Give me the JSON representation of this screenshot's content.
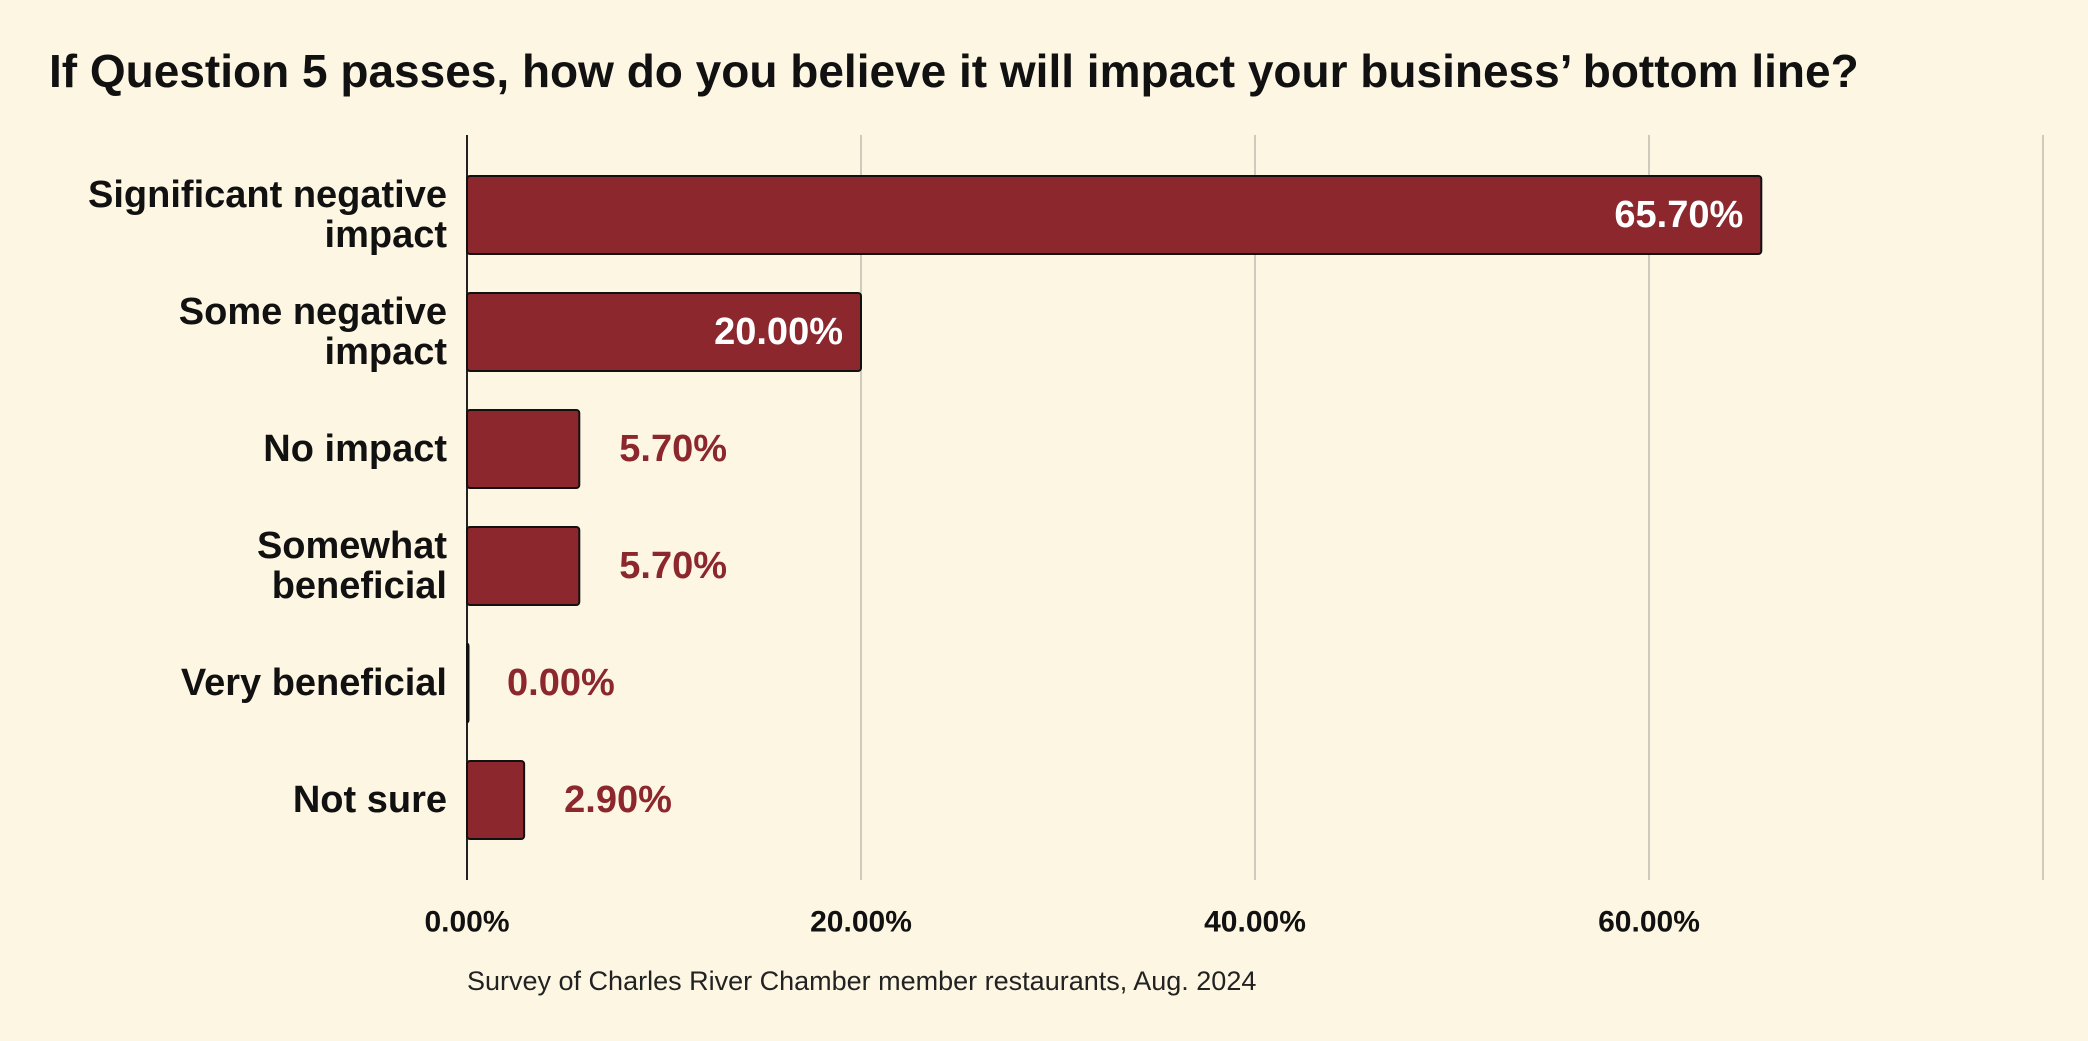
{
  "title": "If Question 5 passes, how do you believe it will impact your business’ bottom line?",
  "source_note": "Survey of Charles River Chamber member restaurants, Aug. 2024",
  "colors": {
    "background": "#fdf6e3",
    "bar": "#8b272d",
    "label_inside": "#ffffff",
    "label_outside": "#8b272d",
    "gridline": "#cfcabe"
  },
  "chart_data": {
    "type": "bar",
    "orientation": "horizontal",
    "title": "If Question 5 passes, how do you believe it will impact your business’ bottom line?",
    "categories": [
      [
        "Significant negative",
        "impact"
      ],
      [
        "Some negative",
        "impact"
      ],
      [
        "No impact"
      ],
      [
        "Somewhat",
        "beneficial"
      ],
      [
        "Very beneficial"
      ],
      [
        "Not sure"
      ]
    ],
    "values": [
      65.7,
      20.0,
      5.7,
      5.7,
      0.0,
      2.9
    ],
    "value_labels": [
      "65.70%",
      "20.00%",
      "5.70%",
      "5.70%",
      "0.00%",
      "2.90%"
    ],
    "xlim": [
      0,
      80
    ],
    "xticks": [
      0,
      20,
      40,
      60
    ],
    "xtick_labels": [
      "0.00%",
      "20.00%",
      "40.00%",
      "60.00%"
    ],
    "xlabel": "",
    "ylabel": "",
    "grid": "vertical",
    "legend": "none"
  }
}
